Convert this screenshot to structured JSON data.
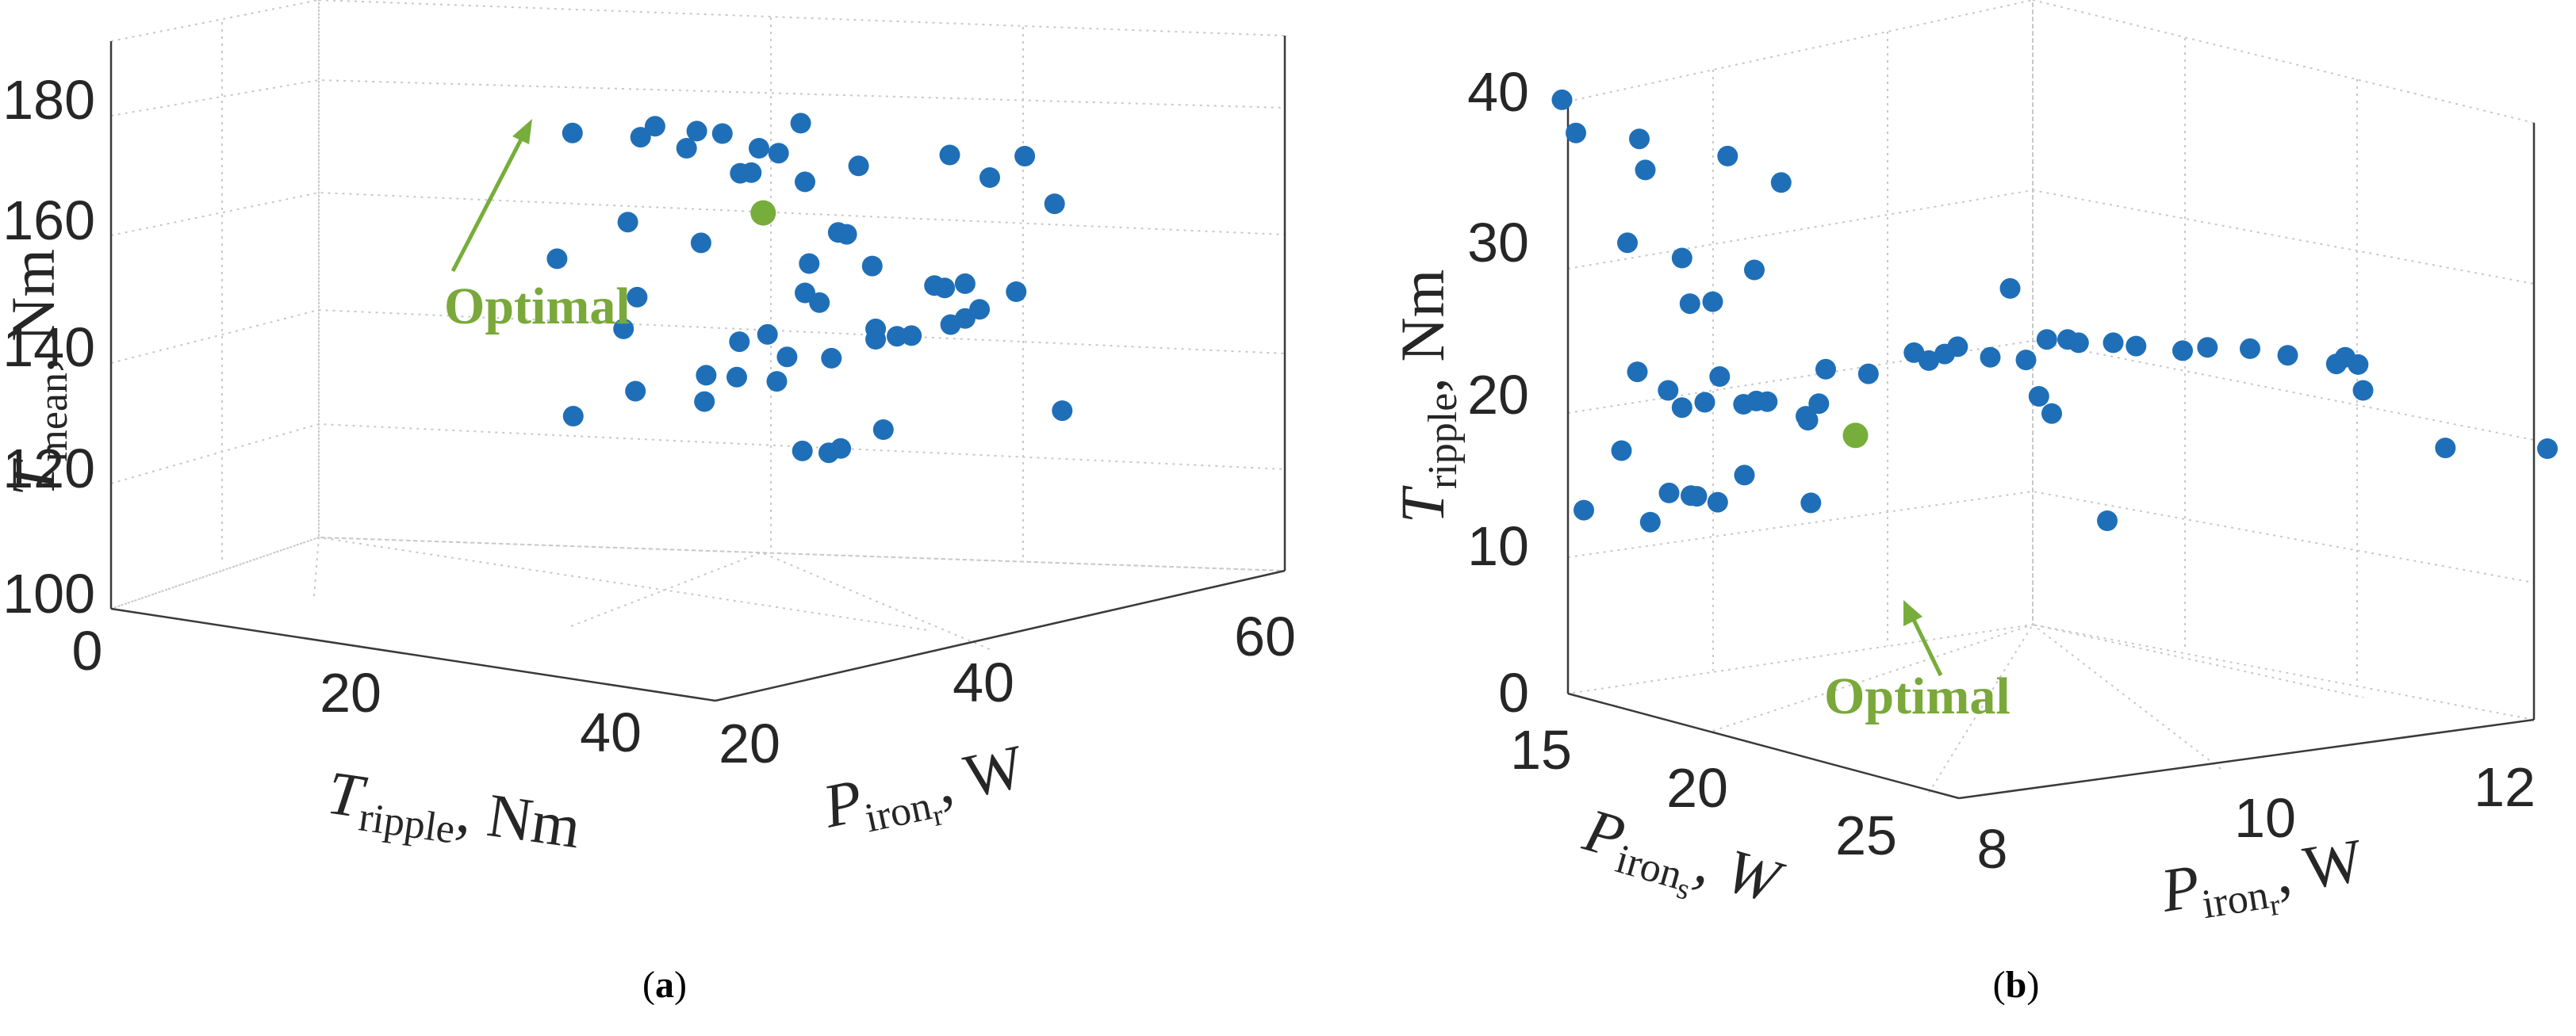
{
  "chart_data": [
    {
      "id": "a",
      "type": "scatter",
      "caption": "(a)",
      "zlabel": {
        "main": "T",
        "sub": "mean",
        "unit": ", Nm"
      },
      "xlabel": {
        "main": "T",
        "sub": "ripple",
        "unit": ", Nm"
      },
      "ylabel": {
        "main": "P",
        "sub": "iron",
        "subsub": "r",
        "unit": ", W"
      },
      "zticks": [
        "100",
        "120",
        "140",
        "160",
        "180"
      ],
      "xticks": [
        "0",
        "20",
        "40"
      ],
      "yticks": [
        "20",
        "40",
        "60"
      ],
      "marker_color": "#1f6fb8",
      "highlight_color": "#77ad3a",
      "annotation": "Optimal",
      "highlight_point": [
        0.383,
        0.781
      ],
      "points": [
        [
          0.141,
          0.706
        ],
        [
          0.159,
          0.912
        ],
        [
          0.239,
          0.905
        ],
        [
          0.256,
          0.923
        ],
        [
          0.305,
          0.915
        ],
        [
          0.293,
          0.887
        ],
        [
          0.335,
          0.911
        ],
        [
          0.224,
          0.766
        ],
        [
          0.356,
          0.846
        ],
        [
          0.432,
          0.832
        ],
        [
          0.427,
          0.928
        ],
        [
          0.495,
          0.858
        ],
        [
          0.378,
          0.887
        ],
        [
          0.369,
          0.847
        ],
        [
          0.401,
          0.879
        ],
        [
          0.437,
          0.698
        ],
        [
          0.471,
          0.749
        ],
        [
          0.481,
          0.746
        ],
        [
          0.511,
          0.694
        ],
        [
          0.602,
          0.876
        ],
        [
          0.649,
          0.839
        ],
        [
          0.69,
          0.874
        ],
        [
          0.725,
          0.796
        ],
        [
          0.235,
          0.643
        ],
        [
          0.31,
          0.732
        ],
        [
          0.355,
          0.57
        ],
        [
          0.219,
          0.591
        ],
        [
          0.432,
          0.65
        ],
        [
          0.449,
          0.634
        ],
        [
          0.388,
          0.582
        ],
        [
          0.352,
          0.512
        ],
        [
          0.411,
          0.545
        ],
        [
          0.463,
          0.543
        ],
        [
          0.515,
          0.591
        ],
        [
          0.515,
          0.574
        ],
        [
          0.54,
          0.579
        ],
        [
          0.557,
          0.58
        ],
        [
          0.584,
          0.662
        ],
        [
          0.596,
          0.658
        ],
        [
          0.603,
          0.598
        ],
        [
          0.62,
          0.665
        ],
        [
          0.637,
          0.623
        ],
        [
          0.62,
          0.608
        ],
        [
          0.68,
          0.652
        ],
        [
          0.16,
          0.448
        ],
        [
          0.233,
          0.489
        ],
        [
          0.316,
          0.515
        ],
        [
          0.314,
          0.472
        ],
        [
          0.399,
          0.505
        ],
        [
          0.429,
          0.391
        ],
        [
          0.46,
          0.388
        ],
        [
          0.474,
          0.395
        ],
        [
          0.524,
          0.426
        ],
        [
          0.734,
          0.457
        ]
      ]
    },
    {
      "id": "b",
      "type": "scatter",
      "caption": "(b)",
      "zlabel": {
        "main": "T",
        "sub": "ripple",
        "unit": ", Nm"
      },
      "xlabel": {
        "main": "P",
        "sub": "iron",
        "subsub": "s",
        "unit": ", W"
      },
      "ylabel": {
        "main": "P",
        "sub": "iron",
        "subsub": "r",
        "unit": ", W"
      },
      "zticks": [
        "0",
        "10",
        "20",
        "30",
        "40"
      ],
      "xticks": [
        "15",
        "20",
        "25"
      ],
      "yticks": [
        "8",
        "10",
        "12"
      ],
      "marker_color": "#1f6fb8",
      "highlight_color": "#77ad3a",
      "annotation": "Optimal",
      "highlight_point": [
        0.302,
        0.432
      ],
      "points": [
        [
          0.006,
          0.939
        ],
        [
          0.02,
          0.889
        ],
        [
          0.084,
          0.88
        ],
        [
          0.173,
          0.854
        ],
        [
          0.09,
          0.833
        ],
        [
          0.227,
          0.814
        ],
        [
          0.072,
          0.723
        ],
        [
          0.127,
          0.7
        ],
        [
          0.135,
          0.631
        ],
        [
          0.158,
          0.634
        ],
        [
          0.2,
          0.682
        ],
        [
          0.165,
          0.521
        ],
        [
          0.082,
          0.528
        ],
        [
          0.113,
          0.5
        ],
        [
          0.15,
          0.482
        ],
        [
          0.127,
          0.474
        ],
        [
          0.202,
          0.484
        ],
        [
          0.213,
          0.483
        ],
        [
          0.189,
          0.479
        ],
        [
          0.252,
          0.461
        ],
        [
          0.254,
          0.455
        ],
        [
          0.265,
          0.48
        ],
        [
          0.272,
          0.532
        ],
        [
          0.315,
          0.525
        ],
        [
          0.361,
          0.557
        ],
        [
          0.376,
          0.545
        ],
        [
          0.392,
          0.555
        ],
        [
          0.405,
          0.566
        ],
        [
          0.458,
          0.654
        ],
        [
          0.438,
          0.55
        ],
        [
          0.474,
          0.546
        ],
        [
          0.487,
          0.491
        ],
        [
          0.495,
          0.577
        ],
        [
          0.516,
          0.577
        ],
        [
          0.527,
          0.572
        ],
        [
          0.562,
          0.572
        ],
        [
          0.585,
          0.567
        ],
        [
          0.632,
          0.56
        ],
        [
          0.657,
          0.565
        ],
        [
          0.7,
          0.563
        ],
        [
          0.738,
          0.553
        ],
        [
          0.787,
          0.54
        ],
        [
          0.796,
          0.55
        ],
        [
          0.809,
          0.539
        ],
        [
          0.814,
          0.5
        ],
        [
          0.066,
          0.409
        ],
        [
          0.114,
          0.345
        ],
        [
          0.142,
          0.34
        ],
        [
          0.163,
          0.331
        ],
        [
          0.136,
          0.341
        ],
        [
          0.028,
          0.319
        ],
        [
          0.095,
          0.301
        ],
        [
          0.19,
          0.372
        ],
        [
          0.257,
          0.33
        ],
        [
          0.5,
          0.465
        ],
        [
          0.897,
          0.413
        ],
        [
          1.0,
          0.412
        ],
        [
          0.556,
          0.303
        ]
      ]
    }
  ]
}
